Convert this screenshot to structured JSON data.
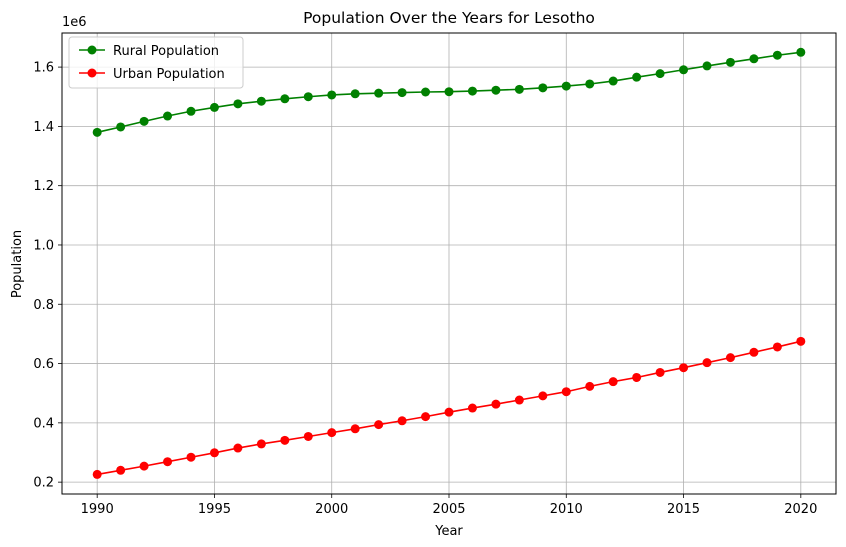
{
  "chart_data": {
    "type": "line",
    "title": "Population Over the Years for Lesotho",
    "xlabel": "Year",
    "ylabel": "Population",
    "y_offset_label": "1e6",
    "y_scale_factor": 1000000,
    "xlim": [
      1988.5,
      2021.5
    ],
    "ylim": [
      160000,
      1715000
    ],
    "x_ticks": [
      1990,
      1995,
      2000,
      2005,
      2010,
      2015,
      2020
    ],
    "y_ticks": [
      200000,
      400000,
      600000,
      800000,
      1000000,
      1200000,
      1400000,
      1600000
    ],
    "y_tick_labels": [
      "0.2",
      "0.4",
      "0.6",
      "0.8",
      "1.0",
      "1.2",
      "1.4",
      "1.6"
    ],
    "grid": true,
    "legend_position": "top-left",
    "x": [
      1990,
      1991,
      1992,
      1993,
      1994,
      1995,
      1996,
      1997,
      1998,
      1999,
      2000,
      2001,
      2002,
      2003,
      2004,
      2005,
      2006,
      2007,
      2008,
      2009,
      2010,
      2011,
      2012,
      2013,
      2014,
      2015,
      2016,
      2017,
      2018,
      2019,
      2020
    ],
    "series": [
      {
        "name": "Rural Population",
        "color": "#008000",
        "values": [
          1380000,
          1398000,
          1417000,
          1435000,
          1451000,
          1464000,
          1476000,
          1485000,
          1493000,
          1500000,
          1506000,
          1510000,
          1512000,
          1514000,
          1516000,
          1517000,
          1519000,
          1522000,
          1525000,
          1530000,
          1536000,
          1543000,
          1553000,
          1566000,
          1578000,
          1591000,
          1604000,
          1616000,
          1628000,
          1640000,
          1650000
        ]
      },
      {
        "name": "Urban Population",
        "color": "#ff0000",
        "values": [
          226000,
          240000,
          254000,
          269000,
          284000,
          299000,
          315000,
          329000,
          341000,
          354000,
          367000,
          380000,
          394000,
          407000,
          421000,
          436000,
          450000,
          463000,
          477000,
          491000,
          505000,
          523000,
          539000,
          553000,
          570000,
          586000,
          603000,
          620000,
          638000,
          656000,
          675000
        ]
      }
    ]
  }
}
